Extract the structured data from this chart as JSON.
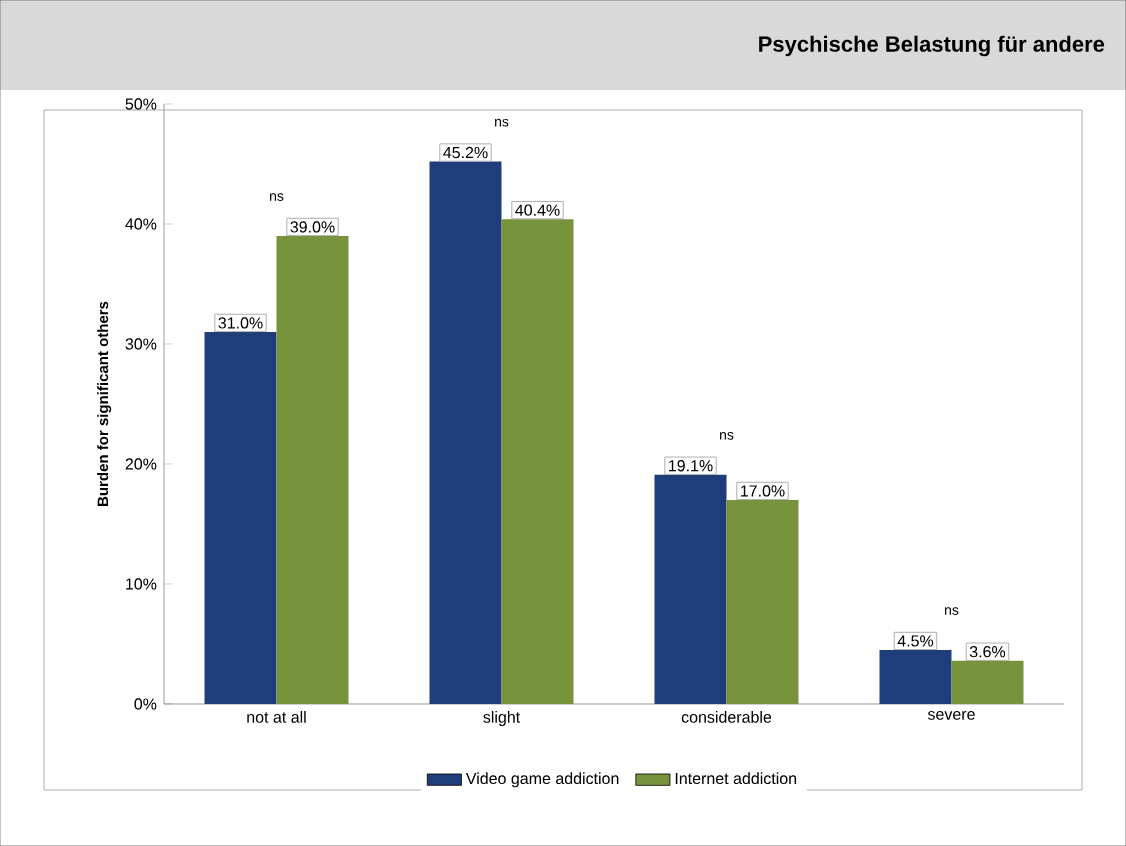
{
  "chart_data": {
    "type": "bar",
    "title": "Psychische Belastung für andere",
    "ylabel": "Burden for significant others",
    "categories": [
      "not at all",
      "slight",
      "considerable",
      "severe"
    ],
    "series": [
      {
        "name": "Video game addiction",
        "color": "#1f3d7a",
        "values": [
          31.0,
          45.2,
          19.1,
          4.5
        ],
        "value_labels": [
          "31.0%",
          "45.2%",
          "19.1%",
          "4.5%"
        ]
      },
      {
        "name": "Internet addiction",
        "color": "#77933c",
        "values": [
          39.0,
          40.4,
          17.0,
          3.6
        ],
        "value_labels": [
          "39.0%",
          "40.4%",
          "17.0%",
          "3.6%"
        ]
      }
    ],
    "ylim": [
      0,
      50
    ],
    "yticks": [
      {
        "value": 0,
        "label": "0%"
      },
      {
        "value": 10,
        "label": "10%"
      },
      {
        "value": 20,
        "label": "20%"
      },
      {
        "value": 30,
        "label": "30%"
      },
      {
        "value": 40,
        "label": "40%"
      },
      {
        "value": 50,
        "label": "50%"
      }
    ],
    "annotations": [
      "ns",
      "ns",
      "ns",
      "ns"
    ],
    "legend": "bottom",
    "grid": false
  }
}
